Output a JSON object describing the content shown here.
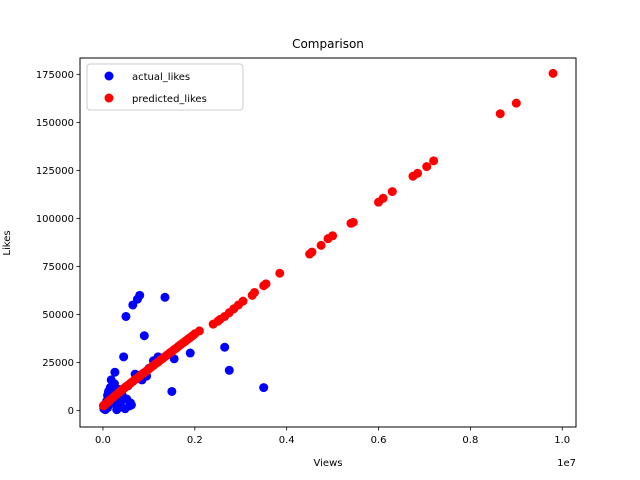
{
  "chart_data": {
    "type": "scatter",
    "title": "Comparison",
    "xlabel": "Views",
    "ylabel": "Likes",
    "x_offset_text": "1e7",
    "x_scale": 10000000,
    "xlim": [
      -500000,
      10300000
    ],
    "ylim": [
      -8500,
      183500
    ],
    "xticks": [
      0,
      2000000,
      4000000,
      6000000,
      8000000,
      10000000
    ],
    "xtick_labels": [
      "0.0",
      "0.2",
      "0.4",
      "0.6",
      "0.8",
      "1.0"
    ],
    "yticks": [
      0,
      25000,
      50000,
      75000,
      100000,
      125000,
      150000,
      175000
    ],
    "ytick_labels": [
      "0",
      "25000",
      "50000",
      "75000",
      "100000",
      "125000",
      "150000",
      "175000"
    ],
    "grid": false,
    "legend_position": "top-left",
    "series": [
      {
        "name": "actual_likes",
        "color": "#0000ff",
        "points": [
          [
            20000,
            1000
          ],
          [
            30000,
            3000
          ],
          [
            50000,
            500
          ],
          [
            60000,
            2000
          ],
          [
            80000,
            5000
          ],
          [
            100000,
            8000
          ],
          [
            100000,
            1500
          ],
          [
            120000,
            10000
          ],
          [
            150000,
            4000
          ],
          [
            160000,
            12000
          ],
          [
            180000,
            16000
          ],
          [
            200000,
            6000
          ],
          [
            220000,
            9000
          ],
          [
            250000,
            14000
          ],
          [
            260000,
            20000
          ],
          [
            280000,
            3000
          ],
          [
            300000,
            500
          ],
          [
            320000,
            7000
          ],
          [
            350000,
            11000
          ],
          [
            380000,
            2000
          ],
          [
            400000,
            5000
          ],
          [
            420000,
            8000
          ],
          [
            450000,
            28000
          ],
          [
            480000,
            1000
          ],
          [
            500000,
            49000
          ],
          [
            520000,
            6000
          ],
          [
            550000,
            13000
          ],
          [
            580000,
            2500
          ],
          [
            600000,
            4000
          ],
          [
            620000,
            3000
          ],
          [
            650000,
            55000
          ],
          [
            700000,
            19000
          ],
          [
            750000,
            58000
          ],
          [
            800000,
            60000
          ],
          [
            850000,
            16000
          ],
          [
            900000,
            39000
          ],
          [
            950000,
            18000
          ],
          [
            1000000,
            22000
          ],
          [
            1100000,
            26000
          ],
          [
            1200000,
            28000
          ],
          [
            1350000,
            59000
          ],
          [
            1500000,
            10000
          ],
          [
            1550000,
            27000
          ],
          [
            1900000,
            30000
          ],
          [
            2650000,
            33000
          ],
          [
            2750000,
            21000
          ],
          [
            3500000,
            12000
          ]
        ]
      },
      {
        "name": "predicted_likes",
        "color": "#ff0000",
        "points": [
          [
            10000,
            2500
          ],
          [
            30000,
            3000
          ],
          [
            60000,
            3500
          ],
          [
            100000,
            4500
          ],
          [
            150000,
            5500
          ],
          [
            200000,
            6500
          ],
          [
            250000,
            7500
          ],
          [
            300000,
            8500
          ],
          [
            350000,
            9500
          ],
          [
            400000,
            10500
          ],
          [
            450000,
            11500
          ],
          [
            500000,
            12500
          ],
          [
            550000,
            13300
          ],
          [
            600000,
            14300
          ],
          [
            650000,
            15200
          ],
          [
            700000,
            16200
          ],
          [
            750000,
            17000
          ],
          [
            800000,
            18000
          ],
          [
            850000,
            19000
          ],
          [
            900000,
            19800
          ],
          [
            950000,
            20700
          ],
          [
            1000000,
            21700
          ],
          [
            1050000,
            22600
          ],
          [
            1100000,
            23500
          ],
          [
            1150000,
            24500
          ],
          [
            1200000,
            25300
          ],
          [
            1250000,
            26300
          ],
          [
            1300000,
            27200
          ],
          [
            1350000,
            28100
          ],
          [
            1400000,
            29000
          ],
          [
            1450000,
            30000
          ],
          [
            1500000,
            30800
          ],
          [
            1550000,
            31800
          ],
          [
            1600000,
            32600
          ],
          [
            1650000,
            33600
          ],
          [
            1700000,
            34500
          ],
          [
            1750000,
            35400
          ],
          [
            1800000,
            36300
          ],
          [
            1850000,
            37200
          ],
          [
            1900000,
            38100
          ],
          [
            1950000,
            39000
          ],
          [
            2000000,
            40000
          ],
          [
            2100000,
            41500
          ],
          [
            2400000,
            45000
          ],
          [
            2500000,
            46500
          ],
          [
            2550000,
            47500
          ],
          [
            2650000,
            49000
          ],
          [
            2750000,
            51000
          ],
          [
            2850000,
            53000
          ],
          [
            2950000,
            55000
          ],
          [
            3050000,
            57000
          ],
          [
            3250000,
            60000
          ],
          [
            3300000,
            61500
          ],
          [
            3500000,
            65000
          ],
          [
            3550000,
            66000
          ],
          [
            3850000,
            71500
          ],
          [
            4500000,
            81500
          ],
          [
            4550000,
            82500
          ],
          [
            4750000,
            86000
          ],
          [
            4900000,
            89500
          ],
          [
            5000000,
            91000
          ],
          [
            5400000,
            97500
          ],
          [
            5450000,
            98000
          ],
          [
            6000000,
            108500
          ],
          [
            6100000,
            110500
          ],
          [
            6300000,
            114000
          ],
          [
            6750000,
            122000
          ],
          [
            6850000,
            123500
          ],
          [
            7050000,
            127000
          ],
          [
            7200000,
            130000
          ],
          [
            8650000,
            154500
          ],
          [
            9000000,
            160000
          ],
          [
            9800000,
            175500
          ]
        ]
      }
    ]
  }
}
